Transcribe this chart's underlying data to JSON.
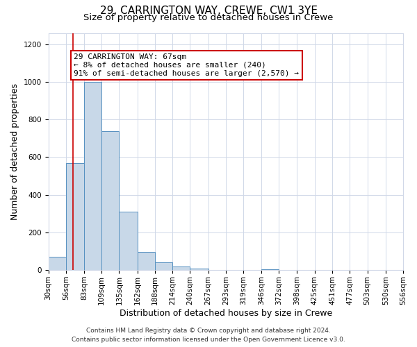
{
  "title": "29, CARRINGTON WAY, CREWE, CW1 3YE",
  "subtitle": "Size of property relative to detached houses in Crewe",
  "xlabel": "Distribution of detached houses by size in Crewe",
  "ylabel": "Number of detached properties",
  "bar_edges": [
    30,
    56,
    83,
    109,
    135,
    162,
    188,
    214,
    240,
    267,
    293,
    319,
    346,
    372,
    398,
    425,
    451,
    477,
    503,
    530,
    556
  ],
  "bar_heights": [
    70,
    570,
    1000,
    740,
    310,
    95,
    40,
    20,
    8,
    0,
    0,
    0,
    5,
    0,
    0,
    0,
    0,
    0,
    0,
    0
  ],
  "bar_color": "#c8d8e8",
  "bar_edgecolor": "#5590c0",
  "property_line_x": 67,
  "property_line_color": "#cc0000",
  "annotation_line1": "29 CARRINGTON WAY: 67sqm",
  "annotation_line2": "← 8% of detached houses are smaller (240)",
  "annotation_line3": "91% of semi-detached houses are larger (2,570) →",
  "annotation_box_color": "#ffffff",
  "annotation_box_edgecolor": "#cc0000",
  "ylim": [
    0,
    1260
  ],
  "yticks": [
    0,
    200,
    400,
    600,
    800,
    1000,
    1200
  ],
  "footer_line1": "Contains HM Land Registry data © Crown copyright and database right 2024.",
  "footer_line2": "Contains public sector information licensed under the Open Government Licence v3.0.",
  "bg_color": "#ffffff",
  "grid_color": "#d0d8e8",
  "title_fontsize": 11,
  "subtitle_fontsize": 9.5,
  "axis_label_fontsize": 9,
  "tick_fontsize": 7.5,
  "annotation_fontsize": 8,
  "footer_fontsize": 6.5
}
